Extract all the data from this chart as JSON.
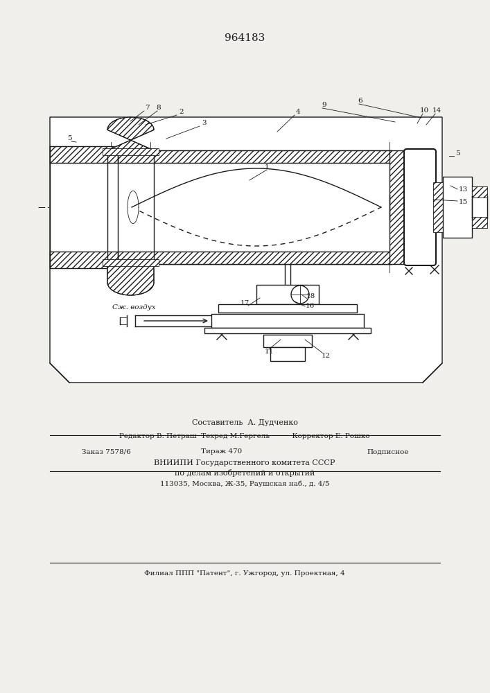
{
  "patent_number": "964183",
  "bg_color": "#f0efeb",
  "line_color": "#1a1a1a",
  "title_fontsize": 11,
  "label_fontsize": 7.5,
  "footer": {
    "line1": "Составитель  А. Дудченко",
    "line2": "Редактор В. Петраш  Техред М.Гергель          Корректор Е. Рошко",
    "line3_left": "Заказ 7578/6",
    "line3_mid": "Тираж 470",
    "line3_right": "Подписное",
    "line4": "ВНИИПИ Государственного комитета СССР",
    "line5": "по делам изобретений и открытий",
    "line6": "113035, Москва, Ж-35, Раушская наб., д. 4/5",
    "line7": "Филиал ППП \"Патент\", г. Ужгород, ул. Проектная, 4"
  }
}
